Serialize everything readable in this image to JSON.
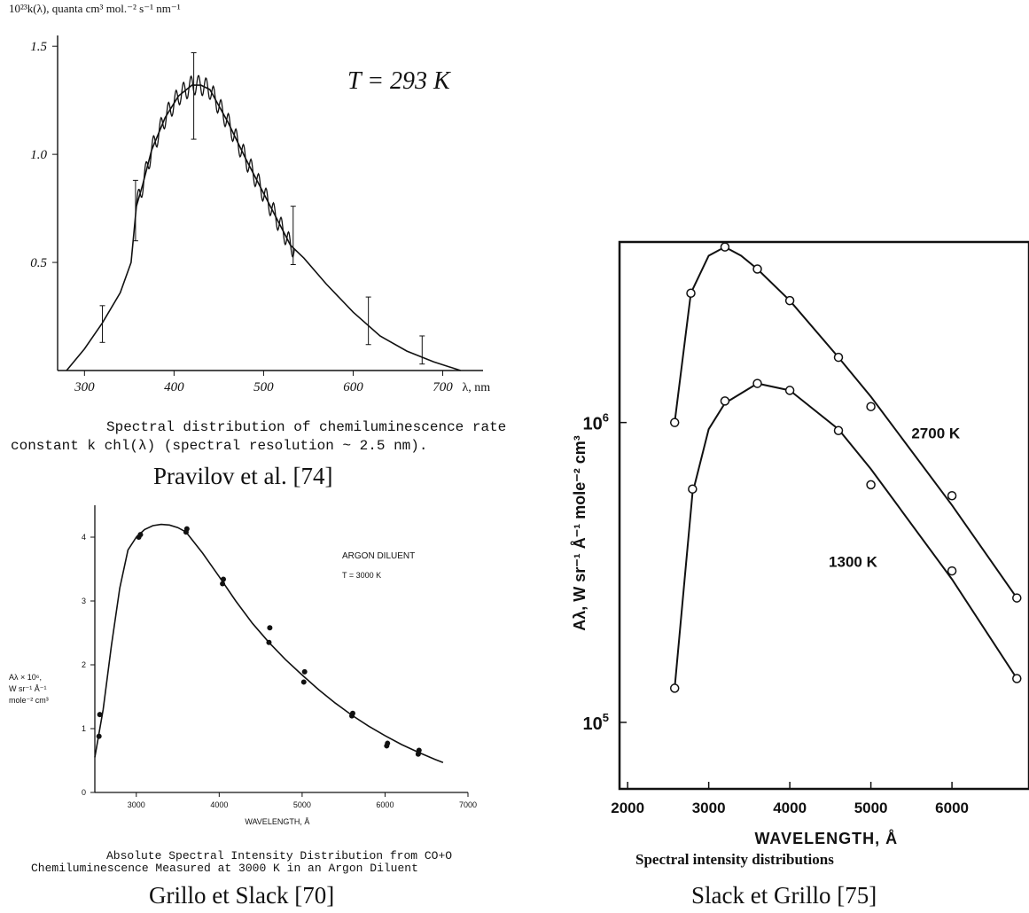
{
  "chart_data": [
    {
      "type": "line",
      "ylabel": "10²³k(λ), quanta cm³ mol.⁻² s⁻¹ nm⁻¹",
      "xlabel": "λ, nm",
      "xlim": [
        270,
        745
      ],
      "ylim": [
        0,
        1.55
      ],
      "x_ticks": [
        300,
        400,
        500,
        600,
        700
      ],
      "x_tick_labels": [
        "300",
        "400",
        "500",
        "600",
        "700"
      ],
      "y_ticks": [
        0.5,
        1.0,
        1.5
      ],
      "y_tick_labels": [
        "0.5",
        "1.0",
        "1.5"
      ],
      "annotation": "T = 293 K",
      "caption_line1": "Spectral distribution of chemiluminescence rate",
      "caption_line2": "constant k chl(λ) (spectral resolution ~ 2.5 nm).",
      "credit": "Pravilov et al. [74]",
      "series": [
        {
          "x": [
            280,
            300,
            320,
            340,
            352,
            358,
            365,
            375,
            390,
            405,
            420,
            430,
            440,
            460,
            480,
            500,
            520,
            530,
            545,
            570,
            600,
            630,
            660,
            690,
            720
          ],
          "y": [
            0.0,
            0.1,
            0.22,
            0.36,
            0.5,
            0.76,
            0.86,
            1.02,
            1.17,
            1.27,
            1.32,
            1.32,
            1.3,
            1.15,
            0.98,
            0.82,
            0.66,
            0.58,
            0.52,
            0.4,
            0.27,
            0.16,
            0.09,
            0.04,
            0.0
          ]
        }
      ],
      "error_bars": [
        {
          "x": 320,
          "y": 0.22,
          "lo": 0.13,
          "hi": 0.3
        },
        {
          "x": 357,
          "y": 0.74,
          "lo": 0.6,
          "hi": 0.88
        },
        {
          "x": 422,
          "y": 1.27,
          "lo": 1.07,
          "hi": 1.47
        },
        {
          "x": 533,
          "y": 0.62,
          "lo": 0.49,
          "hi": 0.76
        },
        {
          "x": 617,
          "y": 0.23,
          "lo": 0.12,
          "hi": 0.34
        },
        {
          "x": 677,
          "y": 0.09,
          "lo": 0.03,
          "hi": 0.16
        }
      ]
    },
    {
      "type": "line",
      "ylabel_lines": [
        "Aλ × 10⁶,",
        "W sr⁻¹ Å⁻¹",
        "mole⁻² cm³"
      ],
      "xlabel": "WAVELENGTH, Å",
      "xlim": [
        2500,
        7000
      ],
      "ylim": [
        0,
        4.5
      ],
      "x_ticks": [
        3000,
        4000,
        5000,
        6000,
        7000
      ],
      "x_tick_labels": [
        "3000",
        "4000",
        "5000",
        "6000",
        "7000"
      ],
      "y_ticks": [
        0,
        1,
        2,
        3,
        4
      ],
      "y_tick_labels": [
        "0",
        "1",
        "2",
        "3",
        "4"
      ],
      "annotation_lines": [
        "ARGON DILUENT",
        "T = 3000 K"
      ],
      "caption_line1": "Absolute Spectral Intensity Distribution from CO+O",
      "caption_line2": "Chemiluminescence Measured at 3000 K in an Argon Diluent",
      "credit": "Grillo et Slack [70]",
      "series": [
        {
          "x": [
            2500,
            2600,
            2700,
            2800,
            2900,
            3000,
            3100,
            3200,
            3300,
            3400,
            3500,
            3600,
            3800,
            4000,
            4200,
            4400,
            4600,
            4800,
            5000,
            5200,
            5400,
            5600,
            5800,
            6000,
            6200,
            6400,
            6600,
            6700
          ],
          "y": [
            0.55,
            1.3,
            2.3,
            3.2,
            3.8,
            4.0,
            4.12,
            4.18,
            4.2,
            4.19,
            4.15,
            4.08,
            3.75,
            3.38,
            3.0,
            2.65,
            2.35,
            2.08,
            1.84,
            1.61,
            1.4,
            1.21,
            1.04,
            0.89,
            0.75,
            0.63,
            0.52,
            0.47
          ]
        }
      ],
      "points": {
        "x": [
          2550,
          2560,
          3030,
          3050,
          3600,
          3610,
          4040,
          4050,
          4600,
          4610,
          5020,
          5030,
          5600,
          5610,
          6020,
          6030,
          6400,
          6410
        ],
        "y": [
          0.88,
          1.22,
          4.0,
          4.04,
          4.08,
          4.13,
          3.27,
          3.34,
          2.35,
          2.58,
          1.73,
          1.89,
          1.2,
          1.24,
          0.73,
          0.77,
          0.6,
          0.66
        ]
      }
    },
    {
      "type": "line",
      "ylabel": "Aλ, W sr⁻¹ Å⁻¹ mole⁻² cm³",
      "xlabel": "WAVELENGTH, Å",
      "xlim": [
        1900,
        6950
      ],
      "ylim": [
        60000,
        4000000
      ],
      "y_scale": "log",
      "x_ticks": [
        2000,
        3000,
        4000,
        5000,
        6000
      ],
      "x_tick_labels": [
        "2000",
        "3000",
        "4000",
        "5000",
        "6000"
      ],
      "y_ticks": [
        100000,
        1000000
      ],
      "y_tick_bases": [
        "10",
        "10"
      ],
      "y_tick_exponents": [
        "5",
        "6"
      ],
      "caption": "Spectral  intensity  distributions",
      "credit": "Slack et Grillo [75]",
      "series": [
        {
          "name": "2700 K",
          "x": [
            2580,
            2780,
            3000,
            3200,
            3400,
            3600,
            4000,
            4600,
            5000,
            6000,
            6800
          ],
          "y": [
            1000000,
            2700000,
            3600000,
            3850000,
            3600000,
            3250000,
            2550000,
            1650000,
            1220000,
            530000,
            260000
          ],
          "points_x": [
            2580,
            2780,
            3200,
            3600,
            4000,
            4600,
            5000,
            6000,
            6800
          ],
          "points_y": [
            1000000,
            2700000,
            3850000,
            3250000,
            2550000,
            1650000,
            1130000,
            570000,
            260000
          ]
        },
        {
          "name": "1300 K",
          "x": [
            2580,
            2800,
            3000,
            3200,
            3600,
            4000,
            4600,
            5000,
            6000,
            6800
          ],
          "y": [
            130000,
            580000,
            950000,
            1160000,
            1350000,
            1280000,
            950000,
            700000,
            300000,
            140000
          ],
          "points_x": [
            2580,
            2800,
            3200,
            3600,
            4000,
            4600,
            5000,
            6000,
            6800
          ],
          "points_y": [
            130000,
            600000,
            1180000,
            1350000,
            1280000,
            940000,
            620000,
            320000,
            140000
          ]
        }
      ]
    }
  ]
}
